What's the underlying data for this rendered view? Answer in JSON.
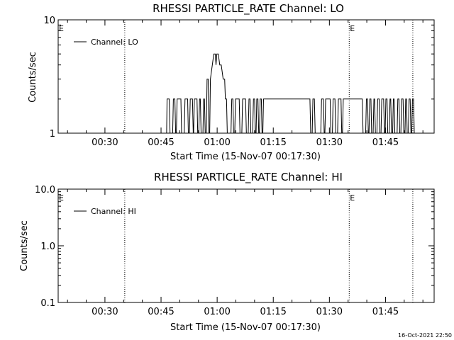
{
  "timestamp": "16-Oct-2021 22:50",
  "chart_data": [
    {
      "type": "line",
      "title": "RHESSI PARTICLE_RATE Channel: LO",
      "xlabel": "Start Time (15-Nov-07 00:17:30)",
      "ylabel": "Counts/sec",
      "y_scale": "log",
      "ylim": [
        1,
        10
      ],
      "y_ticks": [
        1,
        10
      ],
      "y_tick_labels": [
        "1",
        "10"
      ],
      "xlim_minutes": [
        17.5,
        118
      ],
      "x_tick_minutes": [
        30,
        45,
        60,
        75,
        90,
        105
      ],
      "x_tick_labels": [
        "00:30",
        "00:45",
        "01:00",
        "01:15",
        "01:30",
        "01:45"
      ],
      "vlines_minutes": [
        35.3,
        95.3,
        112.3
      ],
      "e_marks": [
        {
          "minute": 17.5,
          "text": "E"
        },
        {
          "minute": 95.3,
          "text": "E"
        }
      ],
      "legend": "Channel: LO",
      "series": [
        {
          "name": "Channel: LO",
          "x": [
            17.5,
            46.5,
            46.6,
            47.2,
            47.4,
            48.1,
            48.3,
            48.7,
            48.9,
            49.1,
            49.3,
            50.3,
            50.5,
            51.2,
            51.4,
            52.1,
            52.3,
            52.6,
            52.8,
            53.4,
            53.6,
            53.7,
            53.9,
            54.6,
            54.8,
            55.1,
            55.3,
            55.5,
            55.7,
            56.2,
            56.4,
            56.6,
            56.8,
            57.1,
            57.3,
            57.6,
            57.8,
            58.0,
            58.2,
            58.7,
            59.1,
            59.5,
            59.7,
            59.9,
            60.3,
            60.7,
            61.1,
            61.6,
            62.0,
            62.2,
            62.5,
            62.7,
            63.7,
            63.9,
            64.2,
            64.4,
            64.7,
            64.9,
            65.9,
            66.1,
            66.6,
            66.8,
            67.6,
            67.8,
            68.3,
            68.5,
            68.8,
            69.0,
            69.5,
            69.7,
            70.0,
            70.2,
            70.4,
            70.6,
            70.9,
            71.1,
            71.3,
            71.5,
            71.8,
            72.0,
            72.2,
            72.4,
            84.8,
            85.0,
            85.4,
            85.6,
            86.0,
            86.2,
            87.7,
            87.9,
            88.4,
            88.6,
            88.8,
            89.0,
            90.2,
            90.4,
            90.8,
            91.0,
            91.5,
            91.7,
            92.2,
            92.4,
            93.1,
            93.3,
            93.5,
            93.7,
            98.8,
            99.0,
            99.7,
            99.9,
            100.2,
            100.4,
            100.6,
            100.8,
            101.1,
            101.3,
            101.7,
            101.9,
            102.1,
            102.3,
            102.7,
            102.9,
            103.3,
            103.5,
            103.8,
            104.0,
            104.5,
            104.7,
            104.9,
            105.1,
            105.4,
            105.6,
            106.0,
            106.2,
            106.4,
            106.6,
            106.9,
            107.1,
            107.3,
            107.5,
            108.1,
            108.3,
            108.6,
            108.8,
            109.1,
            109.3,
            109.7,
            109.9,
            110.2,
            110.4,
            110.6,
            110.8,
            111.1,
            111.3,
            111.6,
            111.8,
            112.0,
            112.2,
            112.5,
            112.7
          ],
          "y": [
            1,
            1,
            2,
            2,
            1,
            1,
            2,
            2,
            1,
            1,
            2,
            2,
            1,
            1,
            2,
            2,
            1,
            1,
            2,
            2,
            1,
            1,
            2,
            2,
            1,
            1,
            2,
            2,
            1,
            1,
            2,
            2,
            1,
            1,
            3,
            3,
            1,
            1,
            3,
            4,
            5,
            5,
            4,
            5,
            5,
            4,
            4,
            3,
            3,
            2,
            2,
            1,
            1,
            2,
            2,
            1,
            1,
            2,
            2,
            1,
            1,
            2,
            2,
            1,
            1,
            2,
            2,
            1,
            1,
            2,
            2,
            1,
            1,
            2,
            2,
            1,
            1,
            2,
            2,
            1,
            1,
            2,
            2,
            1,
            1,
            2,
            2,
            1,
            1,
            2,
            2,
            1,
            1,
            2,
            2,
            1,
            1,
            2,
            2,
            1,
            1,
            2,
            2,
            1,
            1,
            2,
            2,
            1,
            1,
            2,
            2,
            1,
            1,
            2,
            2,
            1,
            1,
            2,
            2,
            1,
            1,
            2,
            2,
            1,
            1,
            2,
            2,
            1,
            1,
            2,
            2,
            1,
            1,
            2,
            2,
            1,
            1,
            2,
            2,
            1,
            1,
            2,
            2,
            1,
            1,
            2,
            2,
            1,
            1,
            2,
            2,
            1,
            1,
            2,
            2,
            1,
            1,
            2,
            2,
            1
          ]
        }
      ]
    },
    {
      "type": "line",
      "title": "RHESSI PARTICLE_RATE Channel: HI",
      "xlabel": "Start Time (15-Nov-07 00:17:30)",
      "ylabel": "Counts/sec",
      "y_scale": "log",
      "ylim": [
        0.1,
        10
      ],
      "y_ticks": [
        0.1,
        1,
        10
      ],
      "y_tick_labels": [
        "0.1",
        "1.0",
        "10.0"
      ],
      "xlim_minutes": [
        17.5,
        118
      ],
      "x_tick_minutes": [
        30,
        45,
        60,
        75,
        90,
        105
      ],
      "x_tick_labels": [
        "00:30",
        "00:45",
        "01:00",
        "01:15",
        "01:30",
        "01:45"
      ],
      "vlines_minutes": [
        35.3,
        95.3,
        112.3
      ],
      "e_marks": [
        {
          "minute": 17.5,
          "text": "E"
        },
        {
          "minute": 95.3,
          "text": "E"
        }
      ],
      "legend": "Channel: HI",
      "series": [
        {
          "name": "Channel: HI",
          "x": [],
          "y": []
        }
      ]
    }
  ]
}
